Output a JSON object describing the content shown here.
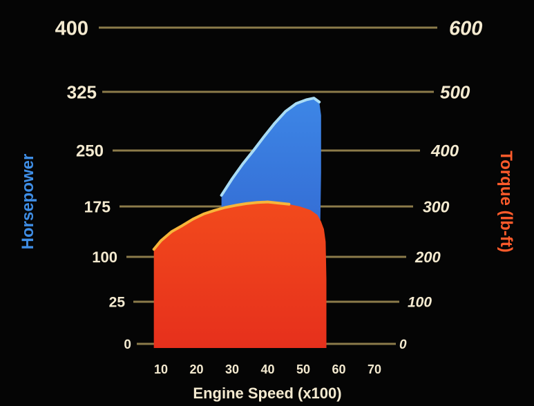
{
  "chart_data": {
    "type": "area",
    "title": "",
    "xlabel": "Engine Speed (x100)",
    "ylabel_left": "Horsepower",
    "ylabel_right": "Torque (lb-ft)",
    "x_ticks": [
      "10",
      "20",
      "30",
      "40",
      "50",
      "60",
      "70"
    ],
    "xlim": [
      5,
      75
    ],
    "y_left_ticks": [
      "0",
      "25",
      "100",
      "175",
      "250",
      "325",
      "400"
    ],
    "y_right_ticks": [
      "0",
      "100",
      "200",
      "300",
      "400",
      "500",
      "600"
    ],
    "grid": true,
    "perspective": "receding",
    "series": [
      {
        "name": "Horsepower",
        "axis": "left",
        "color": "#2f6ad6",
        "x": [
          27,
          30,
          33,
          36,
          39,
          42,
          45,
          48,
          51,
          53,
          54.5,
          55,
          55,
          54.7,
          54.3
        ],
        "y": [
          190,
          212,
          232,
          250,
          268,
          285,
          300,
          310,
          315,
          317,
          312,
          295,
          220,
          120,
          0
        ]
      },
      {
        "name": "Torque (lb-ft)",
        "axis": "right",
        "color": "#ec3d1c",
        "x": [
          8,
          10,
          13,
          16,
          19,
          22,
          25,
          28,
          31,
          34,
          37,
          40,
          43,
          46,
          49,
          52,
          54,
          55,
          55.8,
          56.3,
          56.5,
          56.5
        ],
        "y": [
          215,
          232,
          250,
          262,
          275,
          285,
          292,
          298,
          302,
          305,
          307,
          308,
          306,
          304,
          300,
          293,
          283,
          270,
          255,
          230,
          150,
          0
        ]
      }
    ]
  }
}
